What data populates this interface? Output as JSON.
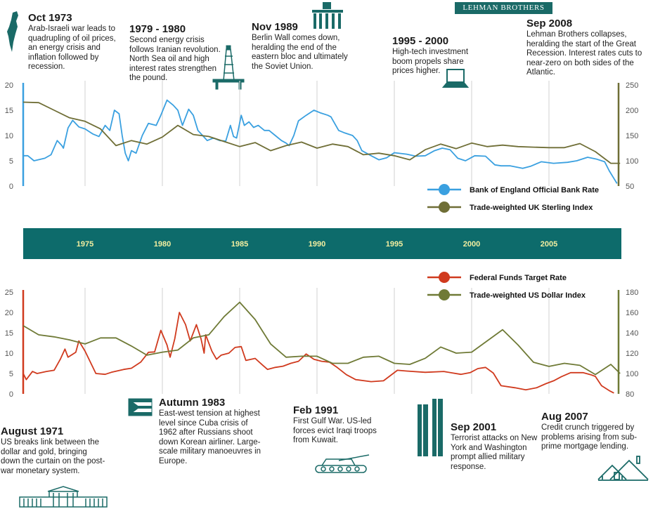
{
  "brand": "LEHMAN BROTHERS",
  "colors": {
    "boe": "#3aa0e0",
    "gbp_index": "#6f6e36",
    "fed": "#d03a1e",
    "usd_index": "#6f7a36",
    "band": "#0d6b6b",
    "band_text": "#f2eea0",
    "grid": "#d8d8d8"
  },
  "annotations": [
    {
      "id": "oct1973",
      "title": "Oct 1973",
      "text": "Arab-Israeli war leads to quadrupling of oil prices, an energy crisis and inflation followed by recession.",
      "icon": "israel-map-icon"
    },
    {
      "id": "y1979",
      "title": "1979 - 1980",
      "text": "Second energy crisis follows Iranian revolution. North Sea oil and high interest rates strengthen the pound.",
      "icon": "oil-rig-icon"
    },
    {
      "id": "nov1989",
      "title": "Nov 1989",
      "text": "Berlin Wall comes down, heralding the end of the eastern bloc and ultimately the Soviet Union.",
      "icon": "brandenburg-gate-icon"
    },
    {
      "id": "y1995",
      "title": "1995 - 2000",
      "text": "High-tech investment boom propels share prices higher.",
      "icon": "laptop-icon"
    },
    {
      "id": "sep2008",
      "title": "Sep 2008",
      "text": "Lehman Brothers collapses, heralding the start of the Great Recession. Interest rates cuts to near-zero on both sides of the Atlantic.",
      "icon": ""
    },
    {
      "id": "aug1971",
      "title": "August 1971",
      "text": "US breaks link between the dollar and gold, bringing down the curtain on the post-war monetary system.",
      "icon": "white-house-icon"
    },
    {
      "id": "aut1983",
      "title": "Autumn  1983",
      "text": "East-west tension at highest level since Cuba crisis of 1962 after Russians shoot down Korean airliner. Large-scale military manoeuvres in Europe.",
      "icon": "cuba-flag-icon"
    },
    {
      "id": "feb1991",
      "title": "Feb 1991",
      "text": "First Gulf War. US-led forces evict Iraqi troops from Kuwait.",
      "icon": "tank-icon"
    },
    {
      "id": "sep2001",
      "title": "Sep 2001",
      "text": "Terrorist attacks on New York and Washington prompt allied military response.",
      "icon": "twin-towers-icon"
    },
    {
      "id": "aug2007",
      "title": "Aug 2007",
      "text": "Credit crunch triggered by problems arising from sub-prime mortgage lending.",
      "icon": "house-icon"
    }
  ],
  "chart_data": [
    {
      "type": "line",
      "region": "UK",
      "grid": true,
      "xlim": [
        1971,
        2009.5
      ],
      "ylim_left": [
        0,
        20
      ],
      "yticks_left": [
        "0",
        "5",
        "10",
        "15",
        "20"
      ],
      "ylim_right": [
        50,
        250
      ],
      "yticks_right": [
        "50",
        "100",
        "150",
        "200",
        "250"
      ],
      "legend": "bottom-right",
      "series": [
        {
          "name": "Bank of England Official Bank Rate",
          "axis": "left",
          "color": "#3aa0e0",
          "x": [
            1971,
            1971.3,
            1971.7,
            1972.4,
            1972.8,
            1973.2,
            1973.5,
            1973.6,
            1973.9,
            1974.2,
            1974.6,
            1975,
            1975.5,
            1975.9,
            1976.3,
            1976.6,
            1976.9,
            1977.2,
            1977.4,
            1977.6,
            1977.8,
            1978,
            1978.3,
            1978.7,
            1979.1,
            1979.6,
            1979.9,
            1980.3,
            1980.7,
            1981,
            1981.3,
            1981.7,
            1982,
            1982.3,
            1982.6,
            1982.9,
            1983.3,
            1983.7,
            1984.1,
            1984.4,
            1984.6,
            1984.8,
            1985.1,
            1985.3,
            1985.6,
            1985.9,
            1986.2,
            1986.6,
            1986.9,
            1987.3,
            1987.7,
            1988,
            1988.2,
            1988.5,
            1988.8,
            1989.3,
            1989.8,
            1990.2,
            1990.7,
            1990.9,
            1991.4,
            1991.8,
            1992.3,
            1992.6,
            1992.9,
            1993.5,
            1994,
            1994.5,
            1995,
            1995.8,
            1996.4,
            1997,
            1997.6,
            1998.1,
            1998.6,
            1999.1,
            1999.6,
            2000.2,
            2000.9,
            2001.5,
            2001.9,
            2002.5,
            2003.3,
            2003.8,
            2004.5,
            2005.3,
            2006.2,
            2006.8,
            2007.5,
            2008.1,
            2008.6,
            2008.9,
            2009.2,
            2009.4
          ],
          "y": [
            6,
            6,
            5,
            5.5,
            6.2,
            9,
            8,
            7.5,
            11.5,
            13,
            11.7,
            11.3,
            10.3,
            9.8,
            12,
            11,
            15,
            14.3,
            10,
            6.5,
            5,
            7,
            6.5,
            10,
            12.4,
            12,
            14,
            17,
            16,
            15,
            12,
            15.2,
            14,
            11,
            10,
            9,
            9.5,
            9,
            8.9,
            12,
            9.8,
            9.5,
            14,
            12,
            12.7,
            11.6,
            12,
            11,
            11,
            10,
            9,
            8.5,
            8,
            10,
            12.9,
            14,
            15,
            14.5,
            14,
            13.7,
            11,
            10.5,
            10,
            9,
            7,
            6,
            5.2,
            5.6,
            6.6,
            6.3,
            5.9,
            6,
            7,
            7.5,
            7.2,
            5.5,
            5,
            6,
            5.9,
            4.2,
            4,
            4,
            3.5,
            3.9,
            4.8,
            4.5,
            4.7,
            5,
            5.7,
            5.3,
            4.8,
            3,
            1.5,
            0.5
          ]
        },
        {
          "name": "Trade-weighted UK Sterling Index",
          "axis": "right",
          "color": "#6f6e36",
          "x": [
            1971,
            1972,
            1973,
            1974,
            1975,
            1976,
            1977,
            1978,
            1979,
            1980,
            1981,
            1982,
            1983,
            1984,
            1985,
            1986,
            1987,
            1988,
            1989,
            1990,
            1991,
            1992,
            1993,
            1994,
            1995,
            1996,
            1997,
            1998,
            1999,
            2000,
            2001,
            2002,
            2003,
            2004,
            2005,
            2006,
            2007,
            2008,
            2009,
            2009.6
          ],
          "y": [
            216,
            215,
            200,
            185,
            178,
            163,
            130,
            140,
            133,
            147,
            170,
            152,
            148,
            138,
            128,
            136,
            120,
            130,
            137,
            125,
            133,
            128,
            112,
            115,
            110,
            102,
            122,
            133,
            124,
            135,
            128,
            131,
            128,
            127,
            126,
            126,
            134,
            118,
            95,
            95
          ]
        }
      ]
    },
    {
      "type": "line",
      "region": "US",
      "grid": true,
      "xlim": [
        1971,
        2009.5
      ],
      "ylim_left": [
        0,
        25
      ],
      "yticks_left": [
        "0",
        "5",
        "10",
        "15",
        "20",
        "25"
      ],
      "ylim_right": [
        80,
        180
      ],
      "yticks_right": [
        "80",
        "100",
        "120",
        "140",
        "160",
        "180"
      ],
      "legend": "top-right",
      "x_ticks": [
        1975,
        1980,
        1985,
        1990,
        1995,
        2000,
        2005
      ],
      "series": [
        {
          "name": "Federal Funds Target Rate",
          "axis": "left",
          "color": "#d03a1e",
          "x": [
            1971,
            1971.2,
            1971.6,
            1971.9,
            1972.5,
            1973,
            1973.4,
            1973.7,
            1973.9,
            1974.4,
            1974.6,
            1975,
            1975.7,
            1976.3,
            1976.7,
            1977.5,
            1978,
            1978.6,
            1979.1,
            1979.5,
            1979.9,
            1980.3,
            1980.5,
            1980.8,
            1981.1,
            1981.5,
            1981.8,
            1982.2,
            1982.5,
            1982.7,
            1982.8,
            1983.2,
            1983.5,
            1983.8,
            1984.3,
            1984.7,
            1985.1,
            1985.4,
            1986,
            1986.5,
            1986.8,
            1987.3,
            1987.8,
            1988.3,
            1988.8,
            1989.3,
            1989.8,
            1990.3,
            1990.8,
            1991.3,
            1991.9,
            1992.5,
            1993.5,
            1994.3,
            1995.2,
            1995.8,
            1997,
            1998.2,
            1998.8,
            1999.3,
            1999.9,
            2000.4,
            2000.9,
            2001.4,
            2001.9,
            2002.8,
            2003.5,
            2004.2,
            2004.8,
            2005.3,
            2005.8,
            2006.4,
            2007.2,
            2007.7,
            2008,
            2008.4,
            2008.9,
            2009.2
          ],
          "y": [
            5,
            3.5,
            5.5,
            5,
            5.5,
            5.8,
            8.5,
            11,
            9,
            10.2,
            13,
            10.5,
            5,
            4.8,
            5.3,
            6,
            6.3,
            7.8,
            10.2,
            10.3,
            15.6,
            12,
            9,
            13.5,
            20,
            17,
            13,
            17,
            13.5,
            10,
            14.5,
            10.5,
            8.5,
            9.5,
            10,
            11.4,
            11.6,
            8.2,
            8.7,
            7,
            6,
            6.5,
            6.8,
            7.5,
            8,
            9.8,
            8.5,
            8,
            7.8,
            6.5,
            4.7,
            3.5,
            3,
            3.2,
            5.8,
            5.6,
            5.3,
            5.5,
            5.1,
            4.8,
            5.2,
            6.2,
            6.5,
            5.1,
            2,
            1.5,
            1,
            1.5,
            2.5,
            3.2,
            4.2,
            5.2,
            5.2,
            4.7,
            4.3,
            2,
            0.8,
            0.2
          ]
        },
        {
          "name": "Trade-weighted US Dollar Index",
          "axis": "right",
          "color": "#6f7a36",
          "x": [
            1971,
            1972,
            1973,
            1974,
            1975,
            1976,
            1977,
            1978,
            1979,
            1980,
            1981,
            1982,
            1983,
            1984,
            1985,
            1986,
            1987,
            1988,
            1989,
            1990,
            1991,
            1992,
            1993,
            1994,
            1995,
            1996,
            1997,
            1998,
            1999,
            2000,
            2001,
            2002,
            2003,
            2004,
            2005,
            2006,
            2007,
            2008,
            2009,
            2009.6
          ],
          "y": [
            147,
            138,
            136,
            133,
            129,
            135,
            135,
            127,
            118,
            121,
            123,
            135,
            138,
            156,
            170,
            153,
            129,
            116,
            117,
            117,
            110,
            110,
            116,
            117,
            110,
            109,
            115,
            126,
            120,
            121,
            132,
            143,
            128,
            111,
            107,
            110,
            108,
            99,
            109,
            100
          ]
        }
      ]
    }
  ]
}
